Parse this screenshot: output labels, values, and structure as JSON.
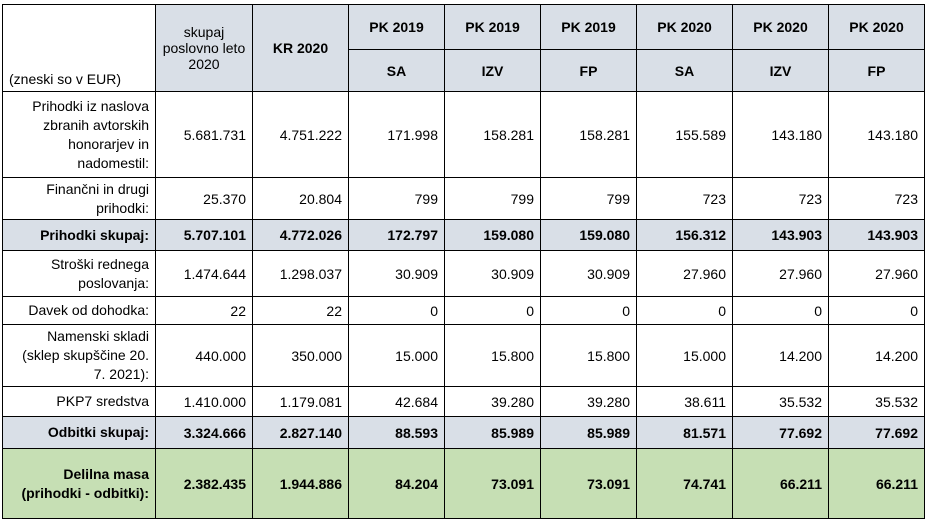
{
  "header": {
    "units": "(zneski so v EUR)",
    "col_total_year": "skupaj poslovno leto 2020",
    "col_kr": "KR 2020",
    "groups": [
      "PK 2019",
      "PK 2019",
      "PK 2019",
      "PK 2020",
      "PK 2020",
      "PK 2020"
    ],
    "subs": [
      "SA",
      "IZV",
      "FP",
      "SA",
      "IZV",
      "FP"
    ]
  },
  "rows": [
    {
      "label": "Prihodki iz naslova zbranih avtorskih honorarjev in nadomestil:",
      "values": [
        "5.681.731",
        "4.751.222",
        "171.998",
        "158.281",
        "158.281",
        "155.589",
        "143.180",
        "143.180"
      ]
    },
    {
      "label": "Finančni in drugi prihodki:",
      "values": [
        "25.370",
        "20.804",
        "799",
        "799",
        "799",
        "723",
        "723",
        "723"
      ]
    },
    {
      "label": "Prihodki skupaj:",
      "values": [
        "5.707.101",
        "4.772.026",
        "172.797",
        "159.080",
        "159.080",
        "156.312",
        "143.903",
        "143.903"
      ]
    },
    {
      "label": "Stroški rednega poslovanja:",
      "values": [
        "1.474.644",
        "1.298.037",
        "30.909",
        "30.909",
        "30.909",
        "27.960",
        "27.960",
        "27.960"
      ]
    },
    {
      "label": "Davek od dohodka:",
      "values": [
        "22",
        "22",
        "0",
        "0",
        "0",
        "0",
        "0",
        "0"
      ]
    },
    {
      "label": "Namenski skladi (sklep skupščine 20. 7. 2021):",
      "values": [
        "440.000",
        "350.000",
        "15.000",
        "15.800",
        "15.800",
        "15.000",
        "14.200",
        "14.200"
      ]
    },
    {
      "label": "PKP7 sredstva",
      "values": [
        "1.410.000",
        "1.179.081",
        "42.684",
        "39.280",
        "39.280",
        "38.611",
        "35.532",
        "35.532"
      ]
    },
    {
      "label": "Odbitki skupaj:",
      "values": [
        "3.324.666",
        "2.827.140",
        "88.593",
        "85.989",
        "85.989",
        "81.571",
        "77.692",
        "77.692"
      ]
    },
    {
      "label": "Delilna masa (prihodki - odbitki):",
      "values": [
        "2.382.435",
        "1.944.886",
        "84.204",
        "73.091",
        "73.091",
        "74.741",
        "66.211",
        "66.211"
      ]
    }
  ]
}
